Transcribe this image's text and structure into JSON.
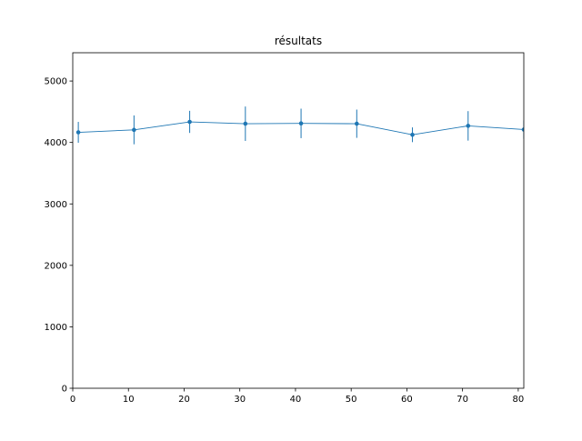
{
  "chart_data": {
    "type": "line",
    "title": "résultats",
    "xlabel": "",
    "ylabel": "",
    "xlim": [
      0,
      81
    ],
    "ylim": [
      0,
      5460
    ],
    "xticks": [
      0,
      10,
      20,
      30,
      40,
      50,
      60,
      70,
      80
    ],
    "yticks": [
      0,
      1000,
      2000,
      3000,
      4000,
      5000
    ],
    "grid": false,
    "legend": "none",
    "color": "#1f77b4",
    "series": [
      {
        "x": [
          1,
          11,
          21,
          31,
          41,
          51,
          61,
          71,
          81
        ],
        "values": [
          4165,
          4205,
          4335,
          4305,
          4310,
          4305,
          4125,
          4270,
          4210
        ],
        "errors": [
          170,
          235,
          180,
          280,
          240,
          230,
          120,
          240,
          150
        ]
      }
    ]
  }
}
